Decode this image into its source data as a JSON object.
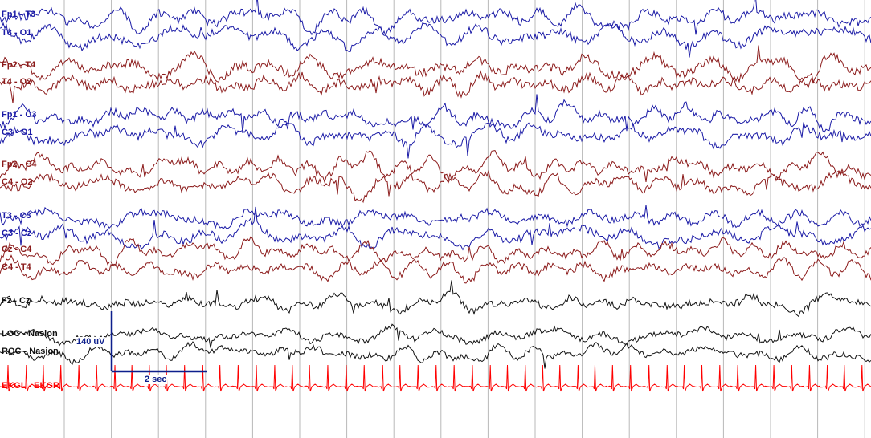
{
  "channels": [
    {
      "label": "Fp1 - T3",
      "color": "#1a1aa6"
    },
    {
      "label": "T3 - O1",
      "color": "#1a1aa6"
    },
    {
      "label": "Fp2 - T4",
      "color": "#8b1a1a"
    },
    {
      "label": "T4 - O2",
      "color": "#8b1a1a"
    },
    {
      "label": "Fp1 - C3",
      "color": "#1a1aa6"
    },
    {
      "label": "C3 - O1",
      "color": "#1a1aa6"
    },
    {
      "label": "Fp2 - C4",
      "color": "#8b1a1a"
    },
    {
      "label": "C4 - O2",
      "color": "#8b1a1a"
    },
    {
      "label": "T3 - C3",
      "color": "#1a1aa6"
    },
    {
      "label": "C3 - Cz",
      "color": "#1a1aa6"
    },
    {
      "label": "Cz - C4",
      "color": "#8b1a1a"
    },
    {
      "label": "C4 - T4",
      "color": "#8b1a1a"
    },
    {
      "label": "Fz - Cz",
      "color": "#111111"
    },
    {
      "label": "LOC - Nasion",
      "color": "#111111"
    },
    {
      "label": "ROC - Nasion",
      "color": "#111111"
    },
    {
      "label": "EKGL - EKGR",
      "color": "#ff0000"
    }
  ],
  "calibration": {
    "amplitude_label": "140 uV",
    "time_label": "2 sec",
    "color": "#0d1f8c"
  },
  "grid_color": "#b8b8b8"
}
